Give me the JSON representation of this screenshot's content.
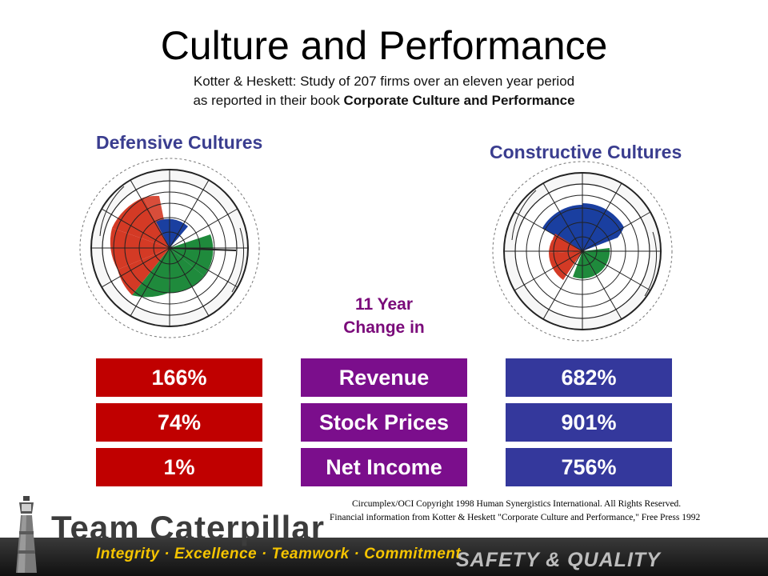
{
  "title": "Culture and Performance",
  "subtitle_line1": "Kotter & Heskett: Study of  207 firms over an eleven year period",
  "subtitle_line2_prefix": "as reported in their book ",
  "subtitle_line2_book": "Corporate Culture and Performance",
  "defensive_heading": "Defensive Cultures",
  "constructive_heading": "Constructive Cultures",
  "change_line1": "11 Year",
  "change_line2": "Change in",
  "rows": [
    {
      "defensive": "166%",
      "metric": "Revenue",
      "constructive": "682%"
    },
    {
      "defensive": "74%",
      "metric": "Stock Prices",
      "constructive": "901%"
    },
    {
      "defensive": "1%",
      "metric": "Net Income",
      "constructive": "756%"
    }
  ],
  "credit_line1": "Circumplex/OCI Copyright 1998 Human Synergistics International.  All Rights Reserved.",
  "credit_line2": "Financial information from Kotter & Heskett \"Corporate Culture and Performance,\" Free Press 1992",
  "footer": {
    "brand": "Team Caterpillar",
    "values": "Integrity  ·  Excellence  ·  Teamwork  ·  Commitment",
    "tagline": "SAFETY & QUALITY"
  },
  "colors": {
    "defensive_red": "#c00000",
    "metric_purple": "#7b0e8c",
    "constructive_blue": "#34389c",
    "wheel_blue": "#1a3fa0",
    "wheel_red": "#d43a25",
    "wheel_green": "#1f8a3c"
  }
}
